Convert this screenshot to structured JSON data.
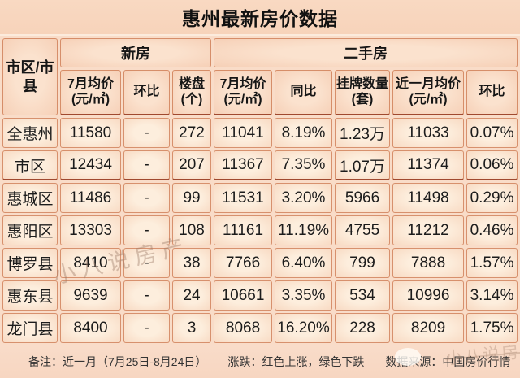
{
  "title": "惠州最新房价数据",
  "palette": {
    "red": "#d23b3e",
    "green": "#2fae76",
    "cell_border": "#cb764d",
    "dark_separator": "#a0492f",
    "background_peach": "#f9dcc8",
    "text": "#1c1c1c"
  },
  "header": {
    "region_col": "市区/市县",
    "group_new": "新房",
    "group_used": "二手房",
    "sub": [
      "7月均价(元/㎡)",
      "环比",
      "楼盘(个)",
      "7月均价(元/㎡)",
      "同比",
      "挂牌数量(套)",
      "近一月均价(元/㎡)",
      "环比"
    ]
  },
  "chart_data": {
    "type": "table",
    "columns": [
      "市区/市县",
      "新房 7月均价(元/㎡)",
      "新房 环比",
      "新房 楼盘(个)",
      "二手房 7月均价(元/㎡)",
      "二手房 同比",
      "二手房 挂牌数量(套)",
      "二手房 近一月均价(元/㎡)",
      "二手房 环比"
    ],
    "rows": [
      {
        "cells": [
          "全惠州",
          "11580",
          "-",
          "272",
          "11041",
          "8.19%",
          "1.23万",
          "11033",
          "0.07%"
        ],
        "colors": [
          "black",
          "black",
          "black",
          "black",
          "black",
          "red",
          "black",
          "black",
          "green"
        ]
      },
      {
        "cells": [
          "市区",
          "12434",
          "-",
          "207",
          "11367",
          "7.35%",
          "1.07万",
          "11374",
          "0.06%"
        ],
        "colors": [
          "black",
          "black",
          "black",
          "black",
          "black",
          "red",
          "black",
          "black",
          "red"
        ]
      },
      {
        "cells": [
          "惠城区",
          "11486",
          "-",
          "99",
          "11531",
          "3.20%",
          "5966",
          "11498",
          "0.29%"
        ],
        "colors": [
          "black",
          "black",
          "black",
          "black",
          "black",
          "red",
          "black",
          "black",
          "green"
        ]
      },
      {
        "cells": [
          "惠阳区",
          "13303",
          "-",
          "108",
          "11161",
          "11.19%",
          "4755",
          "11212",
          "0.46%"
        ],
        "colors": [
          "black",
          "black",
          "black",
          "black",
          "black",
          "red",
          "black",
          "black",
          "red"
        ]
      },
      {
        "cells": [
          "博罗县",
          "8410",
          "-",
          "38",
          "7766",
          "6.40%",
          "799",
          "7888",
          "1.57%"
        ],
        "colors": [
          "black",
          "black",
          "black",
          "black",
          "black",
          "red",
          "black",
          "black",
          "red"
        ]
      },
      {
        "cells": [
          "惠东县",
          "9639",
          "-",
          "24",
          "10661",
          "3.35%",
          "534",
          "10996",
          "3.14%"
        ],
        "colors": [
          "black",
          "black",
          "black",
          "black",
          "black",
          "red",
          "black",
          "black",
          "red"
        ]
      },
      {
        "cells": [
          "龙门县",
          "8400",
          "-",
          "3",
          "8068",
          "16.20%",
          "228",
          "8209",
          "1.75%"
        ],
        "colors": [
          "black",
          "black",
          "black",
          "black",
          "black",
          "green",
          "black",
          "black",
          "red"
        ]
      }
    ]
  },
  "footer": {
    "note": "备注：近一月（7月25日-8月24日）",
    "updown": "涨跌：红色上涨，绿色下跌",
    "source": "数据来源：中国房价行情"
  },
  "watermark": {
    "text": "小八说房产"
  }
}
